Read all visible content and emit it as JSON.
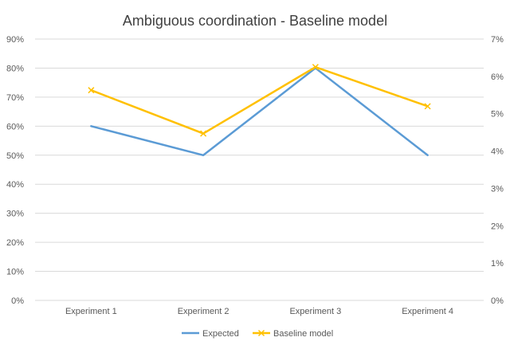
{
  "chart_data": {
    "type": "line",
    "title": "Ambiguous coordination - Baseline model",
    "categories": [
      "Experiment 1",
      "Experiment 2",
      "Experiment 3",
      "Experiment 4"
    ],
    "primary_axis": {
      "ylim": [
        0,
        90
      ],
      "ticks": [
        0,
        10,
        20,
        30,
        40,
        50,
        60,
        70,
        80,
        90
      ],
      "tick_labels": [
        "0%",
        "10%",
        "20%",
        "30%",
        "40%",
        "50%",
        "60%",
        "70%",
        "80%",
        "90%"
      ]
    },
    "secondary_axis": {
      "ylim": [
        0,
        7
      ],
      "ticks": [
        0,
        1,
        2,
        3,
        4,
        5,
        6,
        7
      ],
      "tick_labels": [
        "0%",
        "1%",
        "2%",
        "3%",
        "4%",
        "5%",
        "6%",
        "7%"
      ]
    },
    "series": [
      {
        "name": "Expected",
        "axis": "primary",
        "values": [
          60,
          50,
          80,
          50
        ],
        "color": "#5B9BD5",
        "marker": "none"
      },
      {
        "name": "Baseline model",
        "axis": "secondary",
        "values": [
          5.63,
          4.47,
          6.25,
          5.2
        ],
        "color": "#FFC000",
        "marker": "x"
      }
    ],
    "grid": true,
    "legend": "bottom"
  }
}
